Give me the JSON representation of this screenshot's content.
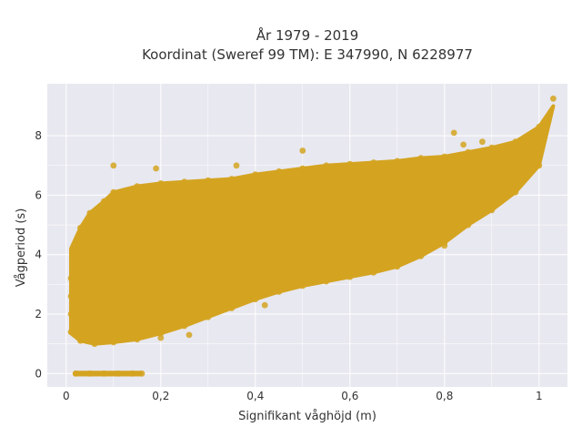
{
  "chart_data": {
    "type": "scatter",
    "title_lines": [
      "År 1979 - 2019",
      "Koordinat (Sweref 99 TM): E 347990, N 6228977"
    ],
    "xlabel": "Signifikant våghöjd (m)",
    "ylabel": "Vågperiod (s)",
    "xlim": [
      -0.04,
      1.06
    ],
    "ylim": [
      -0.45,
      9.75
    ],
    "x_ticks": [
      0,
      0.2,
      0.4,
      0.6,
      0.8,
      1
    ],
    "x_tick_labels": [
      "0",
      "0,2",
      "0,4",
      "0,6",
      "0,8",
      "1"
    ],
    "y_ticks": [
      0,
      2,
      4,
      6,
      8
    ],
    "y_tick_labels": [
      "0",
      "2",
      "4",
      "6",
      "8"
    ],
    "grid": true,
    "background_color": "#e8e8f0",
    "marker_color": "#d4a421",
    "series": [
      {
        "points": [
          [
            0.02,
            0.0
          ],
          [
            0.05,
            0.0
          ],
          [
            0.08,
            0.0
          ],
          [
            0.11,
            0.0
          ],
          [
            0.14,
            0.0
          ],
          [
            0.16,
            0.0
          ],
          [
            0.01,
            1.4
          ],
          [
            0.01,
            2.0
          ],
          [
            0.01,
            2.6
          ],
          [
            0.01,
            3.2
          ],
          [
            0.02,
            3.8
          ],
          [
            0.02,
            4.2
          ],
          [
            0.03,
            1.1
          ],
          [
            0.06,
            1.0
          ],
          [
            0.1,
            1.05
          ],
          [
            0.15,
            1.15
          ],
          [
            0.2,
            1.35
          ],
          [
            0.25,
            1.6
          ],
          [
            0.3,
            1.9
          ],
          [
            0.35,
            2.2
          ],
          [
            0.4,
            2.5
          ],
          [
            0.45,
            2.75
          ],
          [
            0.5,
            2.95
          ],
          [
            0.55,
            3.1
          ],
          [
            0.6,
            3.25
          ],
          [
            0.65,
            3.4
          ],
          [
            0.7,
            3.6
          ],
          [
            0.75,
            3.95
          ],
          [
            0.8,
            4.4
          ],
          [
            0.85,
            5.0
          ],
          [
            0.9,
            5.5
          ],
          [
            0.95,
            6.1
          ],
          [
            1.0,
            7.0
          ],
          [
            1.02,
            8.5
          ],
          [
            1.03,
            9.25
          ],
          [
            0.03,
            4.9
          ],
          [
            0.05,
            5.4
          ],
          [
            0.08,
            5.8
          ],
          [
            0.1,
            6.1
          ],
          [
            0.15,
            6.3
          ],
          [
            0.2,
            6.4
          ],
          [
            0.25,
            6.45
          ],
          [
            0.3,
            6.5
          ],
          [
            0.35,
            6.55
          ],
          [
            0.4,
            6.7
          ],
          [
            0.45,
            6.8
          ],
          [
            0.5,
            6.9
          ],
          [
            0.55,
            7.0
          ],
          [
            0.6,
            7.05
          ],
          [
            0.65,
            7.1
          ],
          [
            0.7,
            7.15
          ],
          [
            0.75,
            7.25
          ],
          [
            0.8,
            7.3
          ],
          [
            0.85,
            7.45
          ],
          [
            0.9,
            7.6
          ],
          [
            0.95,
            7.8
          ],
          [
            1.0,
            8.3
          ],
          [
            0.1,
            7.0
          ],
          [
            0.19,
            6.9
          ],
          [
            0.36,
            7.0
          ],
          [
            0.5,
            7.5
          ],
          [
            0.6,
            7.0
          ],
          [
            0.82,
            8.1
          ],
          [
            0.84,
            7.7
          ],
          [
            0.88,
            7.8
          ],
          [
            0.2,
            1.2
          ],
          [
            0.26,
            1.3
          ],
          [
            0.42,
            2.3
          ],
          [
            0.8,
            4.3
          ],
          [
            0.2,
            4.0
          ],
          [
            0.3,
            4.5
          ],
          [
            0.4,
            4.8
          ],
          [
            0.5,
            5.0
          ],
          [
            0.6,
            5.3
          ],
          [
            0.7,
            5.6
          ],
          [
            0.8,
            6.0
          ],
          [
            0.9,
            6.5
          ],
          [
            0.95,
            7.0
          ],
          [
            0.1,
            3.5
          ],
          [
            0.15,
            3.0
          ],
          [
            0.05,
            2.5
          ]
        ]
      }
    ]
  }
}
